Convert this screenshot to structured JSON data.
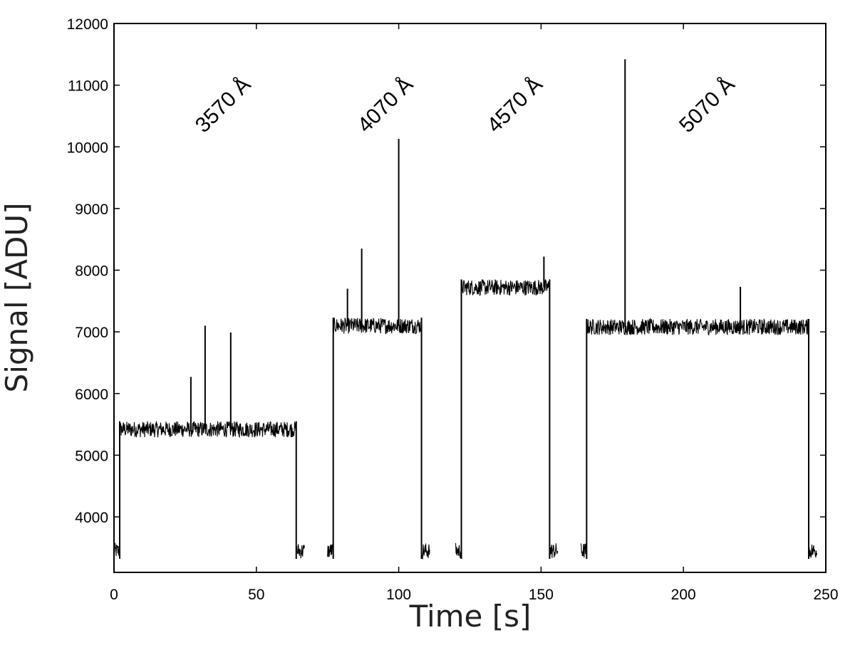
{
  "chart_data": {
    "type": "line",
    "xlabel": "Time [s]",
    "ylabel": "Signal [ADU]",
    "xlim": [
      0,
      250
    ],
    "ylim": [
      3100,
      12000
    ],
    "xticks": [
      0,
      50,
      100,
      150,
      200,
      250
    ],
    "yticks": [
      4000,
      5000,
      6000,
      7000,
      8000,
      9000,
      10000,
      11000,
      12000
    ],
    "grid": false,
    "line_color": "#000000",
    "series": [
      {
        "noise_halfwidth_adu": 130,
        "segments": [
          {
            "x_start": 0,
            "x_end": 2,
            "level": 3450
          },
          {
            "x_start": 2,
            "x_end": 64,
            "level": 5420
          },
          {
            "x_start": 64,
            "x_end": 67,
            "level": 3450
          },
          {
            "x_start": 75,
            "x_end": 77,
            "level": 3450
          },
          {
            "x_start": 77,
            "x_end": 108,
            "level": 7100
          },
          {
            "x_start": 108,
            "x_end": 111,
            "level": 3450
          },
          {
            "x_start": 120,
            "x_end": 122,
            "level": 3450
          },
          {
            "x_start": 122,
            "x_end": 153,
            "level": 7720
          },
          {
            "x_start": 153,
            "x_end": 156,
            "level": 3450
          },
          {
            "x_start": 164,
            "x_end": 166,
            "level": 3450
          },
          {
            "x_start": 166,
            "x_end": 244,
            "level": 7080
          },
          {
            "x_start": 244,
            "x_end": 247,
            "level": 3450
          }
        ],
        "spikes": [
          {
            "x": 27,
            "y": 6270
          },
          {
            "x": 32,
            "y": 7100
          },
          {
            "x": 41,
            "y": 6990
          },
          {
            "x": 82,
            "y": 7700
          },
          {
            "x": 87,
            "y": 8350
          },
          {
            "x": 100,
            "y": 10130
          },
          {
            "x": 151,
            "y": 8220
          },
          {
            "x": 179.5,
            "y": 11420
          },
          {
            "x": 220,
            "y": 7730
          }
        ]
      }
    ],
    "annotations": [
      {
        "text": "3570 Å",
        "x": 40,
        "y": 10600,
        "rotation": -45
      },
      {
        "text": "4070 Å",
        "x": 97,
        "y": 10600,
        "rotation": -45
      },
      {
        "text": "4570 Å",
        "x": 142.5,
        "y": 10600,
        "rotation": -45
      },
      {
        "text": "5070 Å",
        "x": 210,
        "y": 10600,
        "rotation": -45
      }
    ]
  }
}
